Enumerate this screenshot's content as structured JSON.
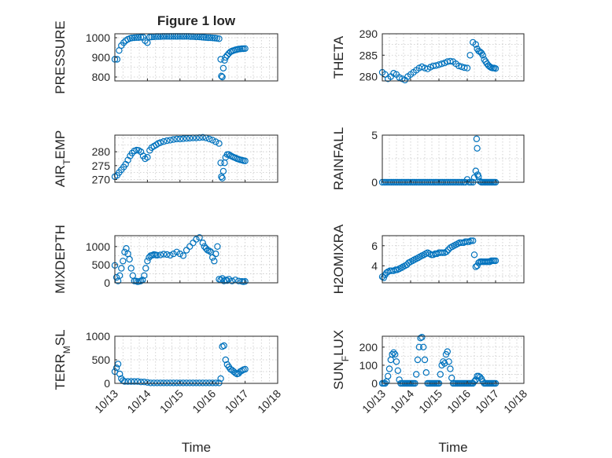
{
  "figure": {
    "title": "Figure 1 low",
    "marker_color": "#0072BD",
    "marker": "open-circle",
    "grid": "dotted",
    "x_tick_labels": [
      "10/13",
      "10/14",
      "10/15",
      "10/16",
      "10/17",
      "10/18"
    ]
  },
  "chart_data": [
    {
      "type": "scatter",
      "title": "Figure 1 low",
      "ylabel": "PRESSURE",
      "xlabel": "",
      "xlim": [
        0,
        5
      ],
      "ylim": [
        780,
        1020
      ],
      "yticks": [
        800,
        900,
        1000
      ],
      "show_xticklabels": false,
      "x": [
        0.0,
        0.07,
        0.13,
        0.2,
        0.27,
        0.33,
        0.4,
        0.47,
        0.53,
        0.6,
        0.67,
        0.73,
        0.8,
        0.87,
        0.93,
        1.0,
        1.07,
        1.13,
        1.2,
        1.27,
        1.33,
        1.4,
        1.47,
        1.53,
        1.6,
        1.67,
        1.73,
        1.8,
        1.87,
        1.93,
        2.0,
        2.07,
        2.13,
        2.2,
        2.27,
        2.33,
        2.4,
        2.47,
        2.53,
        2.6,
        2.67,
        2.73,
        2.8,
        2.87,
        2.93,
        3.0,
        3.07,
        3.13,
        3.2,
        3.25,
        3.27,
        3.3,
        3.33,
        3.37,
        3.4,
        3.45,
        3.5,
        3.55,
        3.6,
        3.65,
        3.7,
        3.75,
        3.8,
        3.85,
        3.9,
        3.95,
        4.0
      ],
      "y": [
        890,
        890,
        935,
        960,
        975,
        985,
        992,
        997,
        999,
        1000,
        1001,
        1001,
        1002,
        1002,
        985,
        975,
        1003,
        1004,
        1005,
        1006,
        1006,
        1006,
        1007,
        1007,
        1007,
        1007,
        1007,
        1007,
        1007,
        1007,
        1007,
        1007,
        1007,
        1007,
        1007,
        1006,
        1006,
        1005,
        1005,
        1004,
        1003,
        1002,
        1001,
        1000,
        1000,
        999,
        998,
        997,
        995,
        890,
        805,
        800,
        845,
        885,
        900,
        910,
        920,
        928,
        932,
        935,
        938,
        940,
        942,
        943,
        944,
        944,
        945
      ]
    },
    {
      "type": "scatter",
      "ylabel": "THETA",
      "xlabel": "",
      "xlim": [
        0,
        5
      ],
      "ylim": [
        279,
        290
      ],
      "yticks": [
        280,
        285,
        290
      ],
      "show_xticklabels": false,
      "x": [
        0.0,
        0.1,
        0.2,
        0.3,
        0.4,
        0.5,
        0.6,
        0.7,
        0.8,
        0.9,
        1.0,
        1.1,
        1.2,
        1.3,
        1.4,
        1.5,
        1.6,
        1.7,
        1.8,
        1.9,
        2.0,
        2.1,
        2.2,
        2.3,
        2.4,
        2.5,
        2.6,
        2.7,
        2.8,
        2.9,
        3.0,
        3.1,
        3.2,
        3.3,
        3.35,
        3.4,
        3.45,
        3.5,
        3.55,
        3.6,
        3.65,
        3.7,
        3.75,
        3.8,
        3.85,
        3.9,
        3.95,
        4.0
      ],
      "y": [
        281,
        280.5,
        279.5,
        280,
        280.8,
        280.5,
        279.8,
        279.5,
        279.2,
        280,
        280.5,
        281,
        281.5,
        282,
        282.3,
        282,
        281.8,
        282.2,
        282.5,
        282.6,
        282.8,
        283,
        283.2,
        283.5,
        283.6,
        283.5,
        283,
        282.5,
        282.3,
        282.1,
        282,
        285,
        288,
        287.5,
        286.5,
        286,
        285.8,
        285.5,
        285,
        284,
        283.5,
        283,
        282.6,
        282.3,
        282.1,
        282,
        282,
        281.9
      ]
    },
    {
      "type": "scatter",
      "ylabel": "AIR_TEMP",
      "xlabel": "",
      "xlim": [
        0,
        5
      ],
      "ylim": [
        269,
        286
      ],
      "yticks": [
        270,
        275,
        280
      ],
      "show_xticklabels": false,
      "x": [
        0.0,
        0.07,
        0.13,
        0.2,
        0.27,
        0.33,
        0.4,
        0.47,
        0.53,
        0.6,
        0.67,
        0.73,
        0.8,
        0.87,
        0.93,
        1.0,
        1.07,
        1.13,
        1.2,
        1.27,
        1.33,
        1.4,
        1.5,
        1.6,
        1.7,
        1.8,
        1.9,
        2.0,
        2.1,
        2.2,
        2.3,
        2.4,
        2.5,
        2.6,
        2.7,
        2.8,
        2.9,
        3.0,
        3.1,
        3.2,
        3.25,
        3.27,
        3.3,
        3.33,
        3.37,
        3.4,
        3.45,
        3.5,
        3.55,
        3.6,
        3.65,
        3.7,
        3.75,
        3.8,
        3.85,
        3.9,
        3.95,
        4.0
      ],
      "y": [
        271,
        271.5,
        272.5,
        273.5,
        274.5,
        275.5,
        277,
        278.5,
        279.5,
        280.3,
        280.6,
        280.5,
        280,
        278.5,
        277.5,
        278,
        280.5,
        281.5,
        282,
        282.5,
        283,
        283.3,
        283.7,
        284,
        284.2,
        284.4,
        284.6,
        284.6,
        284.7,
        284.8,
        284.9,
        285,
        285,
        285.1,
        285.2,
        285,
        284.6,
        284.2,
        283.6,
        283,
        276,
        271,
        270.5,
        273,
        276,
        278,
        279,
        279,
        278.6,
        278.3,
        278,
        277.8,
        277.5,
        277.3,
        277.1,
        277,
        276.8,
        276.7
      ]
    },
    {
      "type": "scatter",
      "ylabel": "RAINFALL",
      "xlabel": "",
      "xlim": [
        0,
        5
      ],
      "ylim": [
        0,
        5
      ],
      "yticks": [
        0,
        5
      ],
      "show_xticklabels": false,
      "x": [
        0.0,
        0.07,
        0.13,
        0.2,
        0.27,
        0.33,
        0.4,
        0.47,
        0.53,
        0.6,
        0.67,
        0.73,
        0.8,
        0.87,
        0.93,
        1.0,
        1.07,
        1.13,
        1.2,
        1.27,
        1.33,
        1.4,
        1.47,
        1.53,
        1.6,
        1.67,
        1.73,
        1.8,
        1.87,
        1.93,
        2.0,
        2.07,
        2.13,
        2.2,
        2.27,
        2.33,
        2.4,
        2.47,
        2.53,
        2.6,
        2.67,
        2.73,
        2.8,
        2.87,
        2.93,
        3.0,
        3.07,
        3.13,
        3.2,
        3.25,
        3.3,
        3.33,
        3.35,
        3.37,
        3.4,
        3.45,
        3.5,
        3.55,
        3.6,
        3.65,
        3.7,
        3.75,
        3.8,
        3.85,
        3.9,
        3.95,
        4.0
      ],
      "y": [
        0,
        0,
        0,
        0,
        0,
        0,
        0,
        0,
        0,
        0,
        0,
        0,
        0,
        0,
        0,
        0,
        0,
        0,
        0,
        0,
        0,
        0,
        0,
        0,
        0,
        0,
        0,
        0,
        0,
        0,
        0,
        0,
        0,
        0,
        0,
        0,
        0,
        0,
        0,
        0,
        0,
        0,
        0,
        0,
        0,
        0.3,
        0,
        0,
        0,
        0.5,
        1.2,
        4.6,
        3.6,
        0.8,
        0.6,
        0.1,
        0,
        0,
        0,
        0,
        0,
        0,
        0,
        0,
        0,
        0,
        0
      ]
    },
    {
      "type": "scatter",
      "ylabel": "MIXDEPTH",
      "xlabel": "",
      "xlim": [
        0,
        5
      ],
      "ylim": [
        0,
        1300
      ],
      "yticks": [
        0,
        500,
        1000
      ],
      "show_xticklabels": false,
      "x": [
        0.0,
        0.05,
        0.1,
        0.15,
        0.2,
        0.25,
        0.3,
        0.35,
        0.4,
        0.45,
        0.5,
        0.55,
        0.6,
        0.65,
        0.7,
        0.75,
        0.8,
        0.85,
        0.9,
        0.95,
        1.0,
        1.05,
        1.1,
        1.15,
        1.2,
        1.25,
        1.3,
        1.4,
        1.5,
        1.6,
        1.7,
        1.8,
        1.9,
        2.0,
        2.1,
        2.2,
        2.3,
        2.4,
        2.5,
        2.6,
        2.7,
        2.75,
        2.8,
        2.85,
        2.9,
        2.95,
        3.0,
        3.05,
        3.1,
        3.15,
        3.2,
        3.25,
        3.3,
        3.35,
        3.4,
        3.45,
        3.5,
        3.6,
        3.7,
        3.8,
        3.9,
        3.95,
        4.0
      ],
      "y": [
        480,
        150,
        50,
        200,
        400,
        600,
        850,
        950,
        800,
        650,
        400,
        200,
        50,
        50,
        30,
        40,
        50,
        80,
        200,
        400,
        600,
        700,
        750,
        760,
        780,
        770,
        760,
        770,
        790,
        780,
        760,
        800,
        850,
        800,
        750,
        900,
        1000,
        1100,
        1200,
        1250,
        1100,
        1000,
        950,
        900,
        880,
        850,
        700,
        600,
        800,
        1000,
        100,
        80,
        120,
        50,
        80,
        60,
        100,
        50,
        80,
        50,
        40,
        30,
        40
      ]
    },
    {
      "type": "scatter",
      "ylabel": "H2OMIXRA",
      "xlabel": "",
      "xlim": [
        0,
        5
      ],
      "ylim": [
        2.3,
        7
      ],
      "yticks": [
        4,
        6
      ],
      "show_xticklabels": false,
      "x": [
        0.0,
        0.05,
        0.1,
        0.15,
        0.2,
        0.27,
        0.33,
        0.4,
        0.47,
        0.53,
        0.6,
        0.67,
        0.73,
        0.8,
        0.87,
        0.93,
        1.0,
        1.07,
        1.13,
        1.2,
        1.27,
        1.33,
        1.4,
        1.47,
        1.53,
        1.6,
        1.67,
        1.73,
        1.8,
        1.87,
        1.93,
        2.0,
        2.07,
        2.13,
        2.2,
        2.27,
        2.33,
        2.4,
        2.47,
        2.53,
        2.6,
        2.67,
        2.73,
        2.8,
        2.87,
        2.93,
        3.0,
        3.07,
        3.13,
        3.2,
        3.25,
        3.3,
        3.35,
        3.4,
        3.45,
        3.5,
        3.55,
        3.6,
        3.65,
        3.7,
        3.75,
        3.8,
        3.85,
        3.9,
        3.95,
        4.0
      ],
      "y": [
        2.9,
        2.8,
        3.1,
        3.3,
        3.4,
        3.5,
        3.5,
        3.5,
        3.6,
        3.6,
        3.7,
        3.8,
        3.9,
        4.0,
        4.1,
        4.3,
        4.4,
        4.5,
        4.6,
        4.7,
        4.8,
        4.9,
        5.0,
        5.1,
        5.2,
        5.3,
        5.2,
        5.1,
        5.1,
        5.2,
        5.2,
        5.3,
        5.3,
        5.3,
        5.3,
        5.4,
        5.6,
        5.8,
        5.9,
        6.0,
        6.1,
        6.2,
        6.3,
        6.3,
        6.3,
        6.4,
        6.4,
        6.4,
        6.5,
        6.5,
        5.1,
        3.9,
        4.0,
        4.3,
        4.4,
        4.4,
        4.4,
        4.4,
        4.4,
        4.4,
        4.4,
        4.4,
        4.5,
        4.5,
        4.5,
        4.5
      ]
    },
    {
      "type": "scatter",
      "ylabel": "TERR_MSL",
      "xlabel": "Time",
      "xlim": [
        0,
        5
      ],
      "ylim": [
        0,
        1000
      ],
      "yticks": [
        0,
        500,
        1000
      ],
      "show_xticklabels": true,
      "x": [
        0.0,
        0.05,
        0.1,
        0.15,
        0.2,
        0.25,
        0.3,
        0.4,
        0.5,
        0.6,
        0.7,
        0.8,
        0.9,
        1.0,
        1.1,
        1.2,
        1.3,
        1.4,
        1.5,
        1.6,
        1.7,
        1.8,
        1.9,
        2.0,
        2.1,
        2.2,
        2.3,
        2.4,
        2.5,
        2.6,
        2.7,
        2.8,
        2.9,
        3.0,
        3.1,
        3.2,
        3.25,
        3.3,
        3.35,
        3.4,
        3.45,
        3.5,
        3.55,
        3.6,
        3.65,
        3.7,
        3.75,
        3.8,
        3.85,
        3.9,
        3.95,
        4.0
      ],
      "y": [
        250,
        330,
        410,
        200,
        100,
        60,
        40,
        40,
        40,
        40,
        40,
        30,
        30,
        20,
        10,
        10,
        10,
        10,
        10,
        10,
        10,
        10,
        10,
        10,
        10,
        10,
        10,
        10,
        10,
        10,
        10,
        10,
        10,
        10,
        10,
        10,
        100,
        780,
        800,
        500,
        400,
        350,
        300,
        280,
        250,
        220,
        200,
        210,
        250,
        270,
        290,
        300
      ]
    },
    {
      "type": "scatter",
      "ylabel": "SUN_FLUX",
      "xlabel": "Time",
      "xlim": [
        0,
        5
      ],
      "ylim": [
        0,
        260
      ],
      "yticks": [
        0,
        100,
        200
      ],
      "show_xticklabels": true,
      "x": [
        0.0,
        0.05,
        0.1,
        0.15,
        0.2,
        0.25,
        0.3,
        0.35,
        0.4,
        0.45,
        0.5,
        0.55,
        0.6,
        0.65,
        0.7,
        0.75,
        0.8,
        0.85,
        0.9,
        0.95,
        1.0,
        1.05,
        1.1,
        1.15,
        1.2,
        1.25,
        1.3,
        1.35,
        1.4,
        1.45,
        1.5,
        1.55,
        1.6,
        1.65,
        1.7,
        1.75,
        1.8,
        1.85,
        1.9,
        1.95,
        2.0,
        2.05,
        2.1,
        2.15,
        2.2,
        2.25,
        2.3,
        2.35,
        2.4,
        2.45,
        2.5,
        2.55,
        2.6,
        2.65,
        2.7,
        2.75,
        2.8,
        2.85,
        2.9,
        2.95,
        3.0,
        3.05,
        3.1,
        3.15,
        3.2,
        3.25,
        3.3,
        3.35,
        3.4,
        3.45,
        3.5,
        3.55,
        3.6,
        3.65,
        3.7,
        3.75,
        3.8,
        3.85,
        3.9,
        3.95,
        4.0
      ],
      "y": [
        0,
        0,
        0,
        10,
        40,
        80,
        130,
        160,
        170,
        160,
        120,
        70,
        20,
        0,
        0,
        0,
        0,
        0,
        0,
        0,
        0,
        0,
        0,
        0,
        50,
        130,
        200,
        250,
        255,
        200,
        130,
        60,
        0,
        0,
        0,
        0,
        0,
        0,
        0,
        0,
        0,
        50,
        100,
        120,
        110,
        160,
        175,
        120,
        80,
        30,
        0,
        0,
        0,
        0,
        0,
        0,
        0,
        0,
        0,
        0,
        0,
        0,
        0,
        0,
        0,
        10,
        20,
        40,
        40,
        35,
        25,
        10,
        0,
        0,
        0,
        0,
        0,
        0,
        0,
        0,
        0
      ]
    }
  ]
}
